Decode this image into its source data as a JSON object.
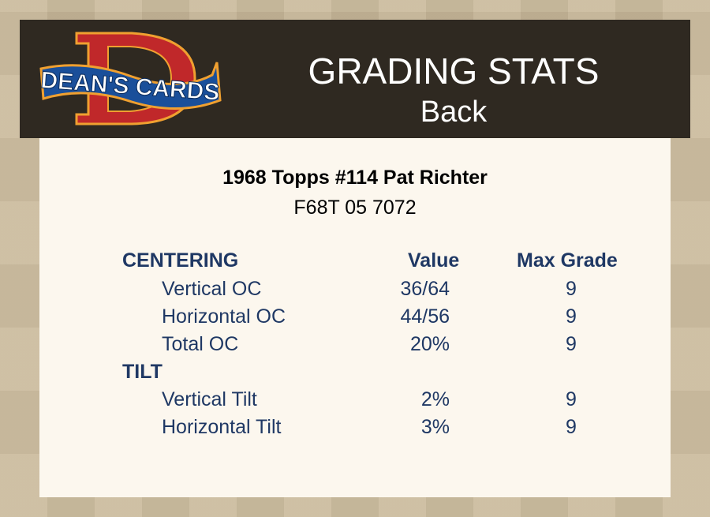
{
  "header": {
    "logo_text": "DEAN'S CARDS",
    "title": "GRADING STATS",
    "subtitle": "Back"
  },
  "card": {
    "name": "1968 Topps #114 Pat Richter",
    "code": "F68T 05 7072"
  },
  "table": {
    "sections": [
      {
        "heading": "CENTERING",
        "value_header": "Value",
        "grade_header": "Max Grade",
        "rows": [
          {
            "label": "Vertical OC",
            "value": "36/64",
            "grade": "9"
          },
          {
            "label": "Horizontal OC",
            "value": "44/56",
            "grade": "9"
          },
          {
            "label": "Total OC",
            "value": "20%",
            "grade": "9"
          }
        ]
      },
      {
        "heading": "TILT",
        "rows": [
          {
            "label": "Vertical Tilt",
            "value": "2%",
            "grade": "9"
          },
          {
            "label": "Horizontal Tilt",
            "value": "3%",
            "grade": "9"
          }
        ]
      }
    ]
  },
  "colors": {
    "header_bg": "#2f2921",
    "panel_bg": "#fcf7ee",
    "text_blue": "#1f3864",
    "logo_red": "#c0282a",
    "logo_blue": "#1a4f9a",
    "logo_orange": "#f0a030"
  }
}
